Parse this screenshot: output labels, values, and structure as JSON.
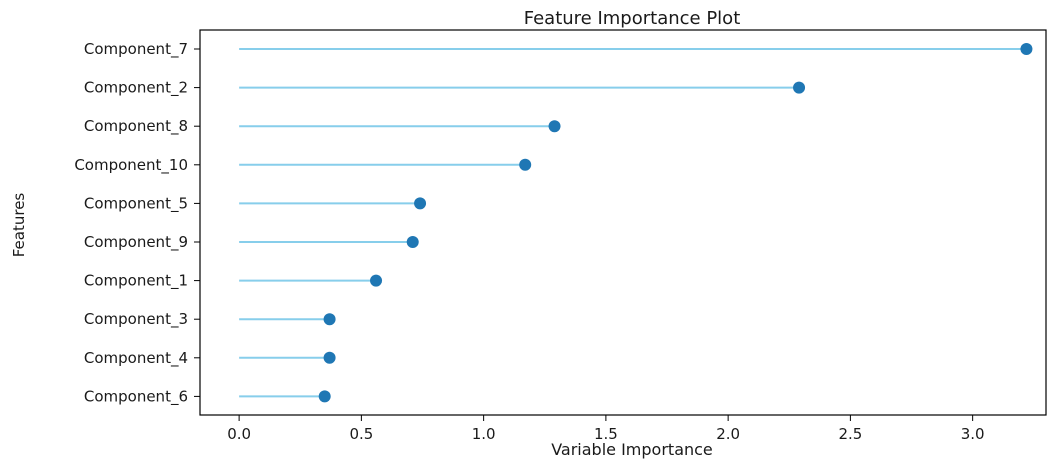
{
  "chart_data": {
    "type": "lollipop",
    "title": "Feature Importance Plot",
    "xlabel": "Variable Importance",
    "ylabel": "Features",
    "xlim": [
      -0.16,
      3.3
    ],
    "xticks": [
      0.0,
      0.5,
      1.0,
      1.5,
      2.0,
      2.5,
      3.0
    ],
    "xtick_labels": [
      "0.0",
      "0.5",
      "1.0",
      "1.5",
      "2.0",
      "2.5",
      "3.0"
    ],
    "grid": false,
    "categories": [
      "Component_7",
      "Component_2",
      "Component_8",
      "Component_10",
      "Component_5",
      "Component_9",
      "Component_1",
      "Component_3",
      "Component_4",
      "Component_6"
    ],
    "values": [
      3.22,
      2.29,
      1.29,
      1.17,
      0.74,
      0.71,
      0.56,
      0.37,
      0.37,
      0.35
    ],
    "colors": {
      "stem": "#87ceeb",
      "marker": "#1f77b4",
      "axis": "#000000"
    }
  }
}
